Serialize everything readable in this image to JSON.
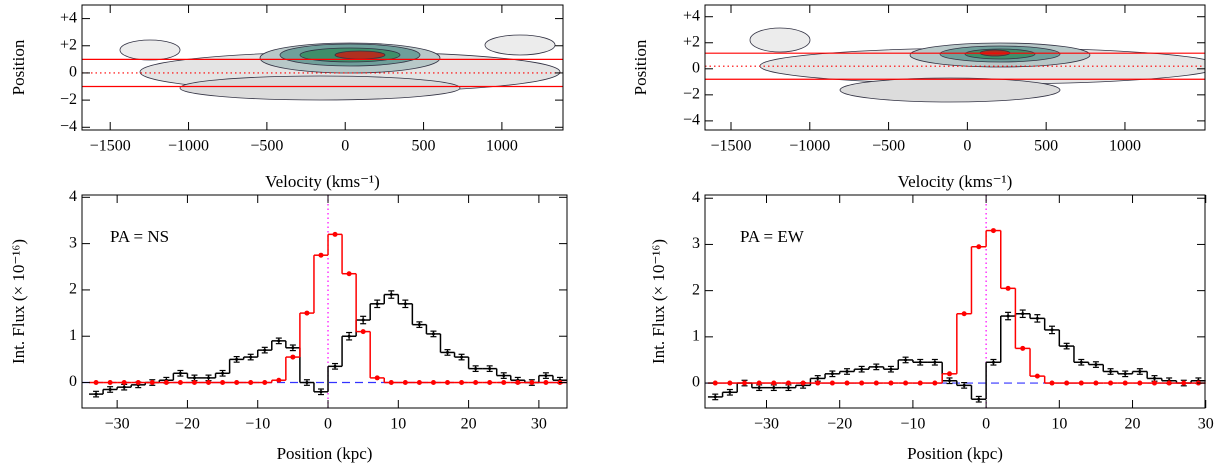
{
  "chart_data": [
    {
      "type": "image",
      "xlabel": "Velocity (kms⁻¹)",
      "ylabel": "Position",
      "xlim": [
        -1680,
        1390
      ],
      "ylim": [
        -4.2,
        5
      ],
      "xticks": [
        {
          "value": -1500,
          "label": "−1500"
        },
        {
          "value": -1000,
          "label": "−1000"
        },
        {
          "value": -500,
          "label": "−500"
        },
        0,
        500,
        1000
      ],
      "yticks": [
        {
          "value": 4,
          "label": "+4"
        },
        {
          "value": 2,
          "label": "+2"
        },
        0,
        {
          "value": -2,
          "label": "−2"
        },
        {
          "value": -4,
          "label": "−4"
        }
      ],
      "hlines": [
        {
          "y": 1,
          "style": "solid",
          "color": "#ff0000"
        },
        {
          "y": -1,
          "style": "solid",
          "color": "#ff0000"
        },
        {
          "y": 0,
          "style": "dotted",
          "color": "#ff0000"
        }
      ]
    },
    {
      "type": "image",
      "xlabel": "Velocity (kms⁻¹)",
      "ylabel": "Position",
      "xlim": [
        -1665,
        1508
      ],
      "ylim": [
        -4.7,
        4.9
      ],
      "xticks": [
        {
          "value": -1500,
          "label": "−1500"
        },
        {
          "value": -1000,
          "label": "−1000"
        },
        {
          "value": -500,
          "label": "−500"
        },
        0,
        500,
        1000
      ],
      "yticks": [
        {
          "value": 4,
          "label": "+4"
        },
        {
          "value": 2,
          "label": "+2"
        },
        0,
        {
          "value": -2,
          "label": "−2"
        },
        {
          "value": -4,
          "label": "−4"
        }
      ],
      "hlines": [
        {
          "y": 1.2,
          "style": "solid",
          "color": "#ff0000"
        },
        {
          "y": -0.8,
          "style": "solid",
          "color": "#ff0000"
        },
        {
          "y": 0.2,
          "style": "dotted",
          "color": "#ff0000"
        }
      ]
    },
    {
      "type": "step",
      "xlabel": "Position (kpc)",
      "ylabel": "Int. Flux (× 10⁻¹⁶)",
      "annotation": "PA = NS",
      "annotation_color": "#6a0dad",
      "xlim": [
        -35,
        34
      ],
      "ylim": [
        -0.55,
        4.05
      ],
      "xticks": [
        {
          "value": -30,
          "label": "−30"
        },
        {
          "value": -20,
          "label": "−20"
        },
        {
          "value": -10,
          "label": "−10"
        },
        0,
        10,
        20,
        30
      ],
      "yticks": [
        0,
        1,
        2,
        3,
        4
      ],
      "vlines": [
        {
          "x": 0,
          "style": "dotted",
          "color": "#ff00ff"
        }
      ],
      "hlines": [
        {
          "y": 0,
          "style": "dashed",
          "color": "#3333ff"
        }
      ],
      "x": [
        -33,
        -31,
        -29,
        -27,
        -25,
        -23,
        -21,
        -19,
        -17,
        -15,
        -13,
        -11,
        -9,
        -7,
        -5,
        -3,
        -1,
        1,
        3,
        5,
        7,
        9,
        11,
        13,
        15,
        17,
        19,
        21,
        23,
        25,
        27,
        29,
        31,
        33
      ],
      "series": [
        {
          "color": "#000000",
          "values": [
            -0.25,
            -0.15,
            -0.1,
            -0.05,
            0,
            0.05,
            0.2,
            0.1,
            0.1,
            0.2,
            0.5,
            0.55,
            0.7,
            0.9,
            0.75,
            0,
            -0.2,
            0.35,
            1,
            1.35,
            1.7,
            1.9,
            1.7,
            1.25,
            1.05,
            0.65,
            0.55,
            0.3,
            0.3,
            0.15,
            0.05,
            0,
            0.15,
            0.05
          ],
          "errors": [
            0.06,
            0.06,
            0.06,
            0.06,
            0.06,
            0.06,
            0.06,
            0.06,
            0.06,
            0.06,
            0.06,
            0.06,
            0.06,
            0.06,
            0.06,
            0.06,
            0.06,
            0.06,
            0.08,
            0.08,
            0.08,
            0.08,
            0.08,
            0.06,
            0.06,
            0.06,
            0.06,
            0.06,
            0.06,
            0.06,
            0.06,
            0.06,
            0.06,
            0.06
          ]
        },
        {
          "color": "#ff0000",
          "values": [
            0,
            0,
            0,
            0,
            0,
            0,
            0,
            0,
            0,
            0,
            0,
            0,
            0,
            0.05,
            0.55,
            1.5,
            2.75,
            3.2,
            2.35,
            1.1,
            0.1,
            0,
            0,
            0,
            0,
            0,
            0,
            0,
            0,
            0,
            0,
            0,
            0,
            0
          ]
        }
      ]
    },
    {
      "type": "step",
      "xlabel": "Position (kpc)",
      "ylabel": "Int. Flux (× 10⁻¹⁶)",
      "annotation": "PA = EW",
      "annotation_color": "#6a0dad",
      "xlim": [
        -38.4,
        29.9
      ],
      "ylim": [
        -0.54,
        4.07
      ],
      "xticks": [
        {
          "value": -30,
          "label": "−30"
        },
        {
          "value": -20,
          "label": "−20"
        },
        {
          "value": -10,
          "label": "−10"
        },
        0,
        10,
        20,
        30
      ],
      "yticks": [
        0,
        1,
        2,
        3,
        4
      ],
      "vlines": [
        {
          "x": 0,
          "style": "dotted",
          "color": "#ff00ff"
        }
      ],
      "hlines": [
        {
          "y": 0,
          "style": "dashed",
          "color": "#3333ff"
        }
      ],
      "x": [
        -37,
        -35,
        -33,
        -31,
        -29,
        -27,
        -25,
        -23,
        -21,
        -19,
        -17,
        -15,
        -13,
        -11,
        -9,
        -7,
        -5,
        -3,
        -1,
        1,
        3,
        5,
        7,
        9,
        11,
        13,
        15,
        17,
        19,
        21,
        23,
        25,
        27,
        29
      ],
      "series": [
        {
          "color": "#000000",
          "values": [
            -0.3,
            -0.2,
            0,
            -0.1,
            -0.1,
            -0.1,
            -0.05,
            0.1,
            0.2,
            0.25,
            0.3,
            0.35,
            0.3,
            0.5,
            0.45,
            0.45,
            0.05,
            -0.05,
            -0.35,
            0.45,
            1.45,
            1.5,
            1.4,
            1.15,
            0.8,
            0.45,
            0.4,
            0.25,
            0.2,
            0.25,
            0.1,
            0.05,
            0,
            0.05
          ],
          "errors": [
            0.06,
            0.06,
            0.06,
            0.06,
            0.06,
            0.06,
            0.06,
            0.06,
            0.06,
            0.06,
            0.06,
            0.06,
            0.06,
            0.06,
            0.06,
            0.06,
            0.06,
            0.06,
            0.06,
            0.06,
            0.08,
            0.08,
            0.08,
            0.08,
            0.06,
            0.06,
            0.06,
            0.06,
            0.06,
            0.06,
            0.06,
            0.06,
            0.06,
            0.06
          ]
        },
        {
          "color": "#ff0000",
          "values": [
            0,
            0,
            0,
            0,
            0,
            0,
            0,
            0,
            0,
            0,
            0,
            0,
            0,
            0,
            0,
            0,
            0.2,
            1.5,
            2.95,
            3.3,
            2.05,
            0.75,
            0.15,
            0,
            0,
            0,
            0,
            0,
            0,
            0,
            0,
            0,
            0,
            0
          ]
        }
      ]
    }
  ]
}
